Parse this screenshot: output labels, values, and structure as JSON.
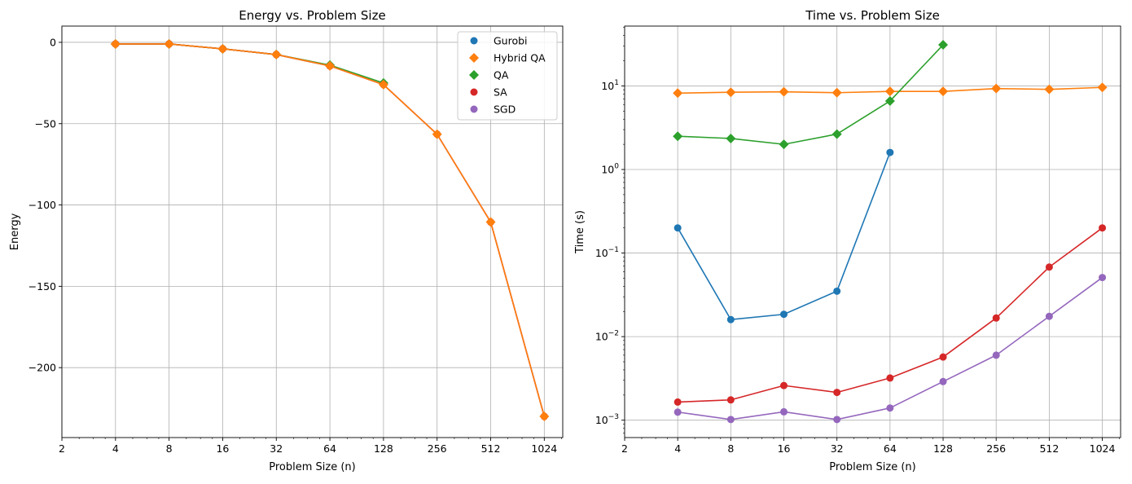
{
  "chart_data": [
    {
      "type": "line",
      "title": "Energy vs. Problem Size",
      "xlabel": "Problem Size (n)",
      "ylabel": "Energy",
      "xscale": "log2",
      "yscale": "linear",
      "xlim": [
        2,
        1300
      ],
      "ylim": [
        -243,
        10
      ],
      "xticks": [
        2,
        4,
        8,
        16,
        32,
        64,
        128,
        256,
        512,
        1024
      ],
      "xtick_labels": [
        "2",
        "4",
        "8",
        "16",
        "32",
        "64",
        "128",
        "256",
        "512",
        "1024"
      ],
      "yticks": [
        0,
        -50,
        -100,
        -150,
        -200
      ],
      "ytick_labels": [
        "0",
        "−50",
        "−100",
        "−150",
        "−200"
      ],
      "grid": true,
      "legend": {
        "placement": "top-right",
        "entries": [
          {
            "name": "Gurobi",
            "color": "#1f77b4",
            "marker": "circle"
          },
          {
            "name": "Hybrid QA",
            "color": "#ff7f0e",
            "marker": "diamond"
          },
          {
            "name": "QA",
            "color": "#2ca02c",
            "marker": "diamond"
          },
          {
            "name": "SA",
            "color": "#d62728",
            "marker": "circle"
          },
          {
            "name": "SGD",
            "color": "#9467bd",
            "marker": "circle"
          }
        ]
      },
      "series": [
        {
          "name": "Gurobi",
          "color": "#1f77b4",
          "marker": "circle",
          "x": [
            4,
            8,
            16,
            32,
            64
          ],
          "values": [
            -1,
            -1,
            -4,
            -7.5,
            -14.5
          ]
        },
        {
          "name": "SGD",
          "color": "#9467bd",
          "marker": "circle",
          "x": [
            4,
            8,
            16,
            32,
            64,
            128,
            256,
            512,
            1024
          ],
          "values": [
            -1,
            -1,
            -4,
            -7.5,
            -14.5,
            -26,
            -56.5,
            -110.5,
            -230
          ]
        },
        {
          "name": "QA",
          "color": "#2ca02c",
          "marker": "diamond",
          "x": [
            4,
            8,
            16,
            32,
            64,
            128
          ],
          "values": [
            -1,
            -1,
            -4,
            -7.5,
            -14,
            -25
          ]
        },
        {
          "name": "SA",
          "color": "#d62728",
          "marker": "circle",
          "x": [
            4,
            8,
            16,
            32,
            64,
            128,
            256,
            512,
            1024
          ],
          "values": [
            -1,
            -1,
            -4,
            -7.5,
            -14.5,
            -26,
            -56.5,
            -110.5,
            -230
          ]
        },
        {
          "name": "Hybrid QA",
          "color": "#ff7f0e",
          "marker": "diamond",
          "x": [
            4,
            8,
            16,
            32,
            64,
            128,
            256,
            512,
            1024
          ],
          "values": [
            -1,
            -1,
            -4,
            -7.5,
            -14.5,
            -26,
            -56.5,
            -110.5,
            -230
          ]
        }
      ]
    },
    {
      "type": "line",
      "title": "Time vs. Problem Size",
      "xlabel": "Problem Size (n)",
      "ylabel": "Time (s)",
      "xscale": "log2",
      "yscale": "log10",
      "xlim": [
        2,
        1300
      ],
      "ylim": [
        0.00062,
        52
      ],
      "xticks": [
        2,
        4,
        8,
        16,
        32,
        64,
        128,
        256,
        512,
        1024
      ],
      "xtick_labels": [
        "2",
        "4",
        "8",
        "16",
        "32",
        "64",
        "128",
        "256",
        "512",
        "1024"
      ],
      "yticks": [
        0.001,
        0.01,
        0.1,
        1,
        10
      ],
      "ytick_labels": [
        {
          "base": "10",
          "exp": "−3"
        },
        {
          "base": "10",
          "exp": "−2"
        },
        {
          "base": "10",
          "exp": "−1"
        },
        {
          "base": "10",
          "exp": "0"
        },
        {
          "base": "10",
          "exp": "1"
        }
      ],
      "grid": true,
      "series": [
        {
          "name": "Hybrid QA",
          "color": "#ff7f0e",
          "marker": "diamond",
          "x": [
            4,
            8,
            16,
            32,
            64,
            128,
            256,
            512,
            1024
          ],
          "values": [
            8.2,
            8.4,
            8.5,
            8.3,
            8.6,
            8.6,
            9.3,
            9.1,
            9.6
          ]
        },
        {
          "name": "QA",
          "color": "#2ca02c",
          "marker": "diamond",
          "x": [
            4,
            8,
            16,
            32,
            64,
            128
          ],
          "values": [
            2.5,
            2.35,
            2.0,
            2.65,
            6.6,
            31
          ]
        },
        {
          "name": "Gurobi",
          "color": "#1f77b4",
          "marker": "circle",
          "x": [
            4,
            8,
            16,
            32,
            64
          ],
          "values": [
            0.2,
            0.016,
            0.0185,
            0.035,
            1.6
          ]
        },
        {
          "name": "SA",
          "color": "#d62728",
          "marker": "circle",
          "x": [
            4,
            8,
            16,
            32,
            64,
            128,
            256,
            512,
            1024
          ],
          "values": [
            0.00165,
            0.00175,
            0.0026,
            0.00215,
            0.0032,
            0.0057,
            0.0167,
            0.068,
            0.2
          ]
        },
        {
          "name": "SGD",
          "color": "#9467bd",
          "marker": "circle",
          "x": [
            4,
            8,
            16,
            32,
            64,
            128,
            256,
            512,
            1024
          ],
          "values": [
            0.00125,
            0.00102,
            0.00126,
            0.00102,
            0.0014,
            0.0029,
            0.006,
            0.0175,
            0.051
          ]
        }
      ]
    }
  ]
}
